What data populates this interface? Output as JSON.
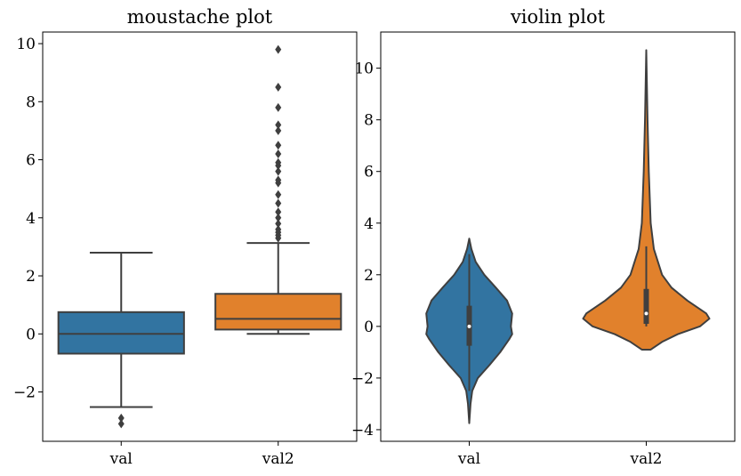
{
  "colors": {
    "val": "#3274a1",
    "val2": "#e1812c",
    "line": "#3f3f3f"
  },
  "chart_data": [
    {
      "type": "box",
      "title": "moustache plot",
      "categories": [
        "val",
        "val2"
      ],
      "ylim": [
        -3.7,
        10.4
      ],
      "yticks": [
        -2,
        0,
        2,
        4,
        6,
        8,
        10
      ],
      "ytick_labels": [
        "−2",
        "0",
        "2",
        "4",
        "6",
        "8",
        "10"
      ],
      "boxes": [
        {
          "name": "val",
          "q1": -0.68,
          "median": 0,
          "q3": 0.75,
          "whisker_low": -2.52,
          "whisker_high": 2.8,
          "outliers": [
            -2.9,
            -3.1
          ]
        },
        {
          "name": "val2",
          "q1": 0.15,
          "median": 0.52,
          "q3": 1.38,
          "whisker_low": 0.0,
          "whisker_high": 3.13,
          "outliers": [
            3.3,
            3.4,
            3.5,
            3.6,
            3.8,
            4.0,
            4.2,
            4.5,
            4.8,
            5.2,
            5.3,
            5.6,
            5.8,
            5.9,
            6.2,
            6.5,
            7.0,
            7.2,
            7.8,
            8.5,
            9.8
          ]
        }
      ]
    },
    {
      "type": "violin",
      "title": "violin plot",
      "categories": [
        "val",
        "val2"
      ],
      "ylim": [
        -4.45,
        11.4
      ],
      "yticks": [
        -4,
        -2,
        0,
        2,
        4,
        6,
        8,
        10
      ],
      "ytick_labels": [
        "−4",
        "−2",
        "0",
        "2",
        "4",
        "6",
        "8",
        "10"
      ],
      "violins": [
        {
          "name": "val",
          "max_width_rel": 0.68,
          "density": [
            [
              3.4,
              0
            ],
            [
              3,
              0.05
            ],
            [
              2.5,
              0.15
            ],
            [
              2,
              0.35
            ],
            [
              1.5,
              0.62
            ],
            [
              1,
              0.88
            ],
            [
              0.5,
              1.0
            ],
            [
              0,
              0.97
            ],
            [
              -0.3,
              1.0
            ],
            [
              -0.5,
              0.93
            ],
            [
              -1,
              0.72
            ],
            [
              -1.5,
              0.47
            ],
            [
              -2,
              0.2
            ],
            [
              -2.5,
              0.07
            ],
            [
              -3,
              0.03
            ],
            [
              -3.75,
              0
            ]
          ],
          "q1": -0.75,
          "median": 0,
          "q3": 0.8,
          "whisker_low": -2.5,
          "whisker_high": 2.8
        },
        {
          "name": "val2",
          "max_width_rel": 1.0,
          "density": [
            [
              10.7,
              0
            ],
            [
              8,
              0.02
            ],
            [
              6,
              0.04
            ],
            [
              4,
              0.07
            ],
            [
              3,
              0.12
            ],
            [
              2,
              0.25
            ],
            [
              1.5,
              0.4
            ],
            [
              1,
              0.65
            ],
            [
              0.5,
              0.95
            ],
            [
              0.3,
              1.0
            ],
            [
              0,
              0.85
            ],
            [
              -0.3,
              0.5
            ],
            [
              -0.6,
              0.25
            ],
            [
              -0.9,
              0.07
            ],
            [
              -0.9,
              0
            ]
          ],
          "q1": 0.1,
          "median": 0.5,
          "q3": 1.45,
          "whisker_low": 0.0,
          "whisker_high": 3.1
        }
      ]
    }
  ]
}
